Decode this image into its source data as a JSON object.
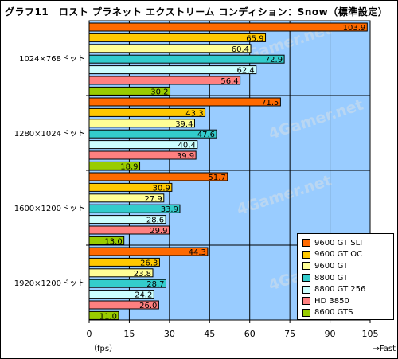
{
  "chart_data": {
    "type": "bar",
    "orientation": "horizontal",
    "title": "グラフ11　ロスト プラネット エクストリーム コンディション：Snow（標準設定）",
    "categories": [
      "1024×768ドット",
      "1280×1024ドット",
      "1600×1200ドット",
      "1920×1200ドット"
    ],
    "series": [
      {
        "name": "9600 GT SLI",
        "color": "#ff6a00",
        "values": [
          103.9,
          71.5,
          51.7,
          44.3
        ]
      },
      {
        "name": "9600 GT OC",
        "color": "#ffc800",
        "values": [
          65.9,
          43.3,
          30.9,
          26.3
        ]
      },
      {
        "name": "9600 GT",
        "color": "#ffff96",
        "values": [
          60.4,
          39.4,
          27.9,
          23.8
        ]
      },
      {
        "name": "8800 GT",
        "color": "#33cccc",
        "values": [
          72.9,
          47.6,
          33.9,
          28.7
        ]
      },
      {
        "name": "8800 GT 256",
        "color": "#ccffff",
        "values": [
          62.4,
          40.4,
          28.6,
          24.2
        ]
      },
      {
        "name": "HD 3850",
        "color": "#ff8080",
        "values": [
          56.4,
          39.9,
          29.9,
          26.0
        ]
      },
      {
        "name": "8600 GTS",
        "color": "#99cc00",
        "values": [
          30.2,
          18.9,
          13.0,
          11.0
        ]
      }
    ],
    "xlim": [
      0,
      105
    ],
    "xticks": [
      "0",
      "15",
      "30",
      "45",
      "60",
      "75",
      "90",
      "105"
    ],
    "xlabel_left": "（fps）",
    "xlabel_right": "→Fast",
    "watermark": "4Gamer.net",
    "grid": true,
    "legend_position": "bottom-right",
    "plot_background": "#99ccff"
  }
}
